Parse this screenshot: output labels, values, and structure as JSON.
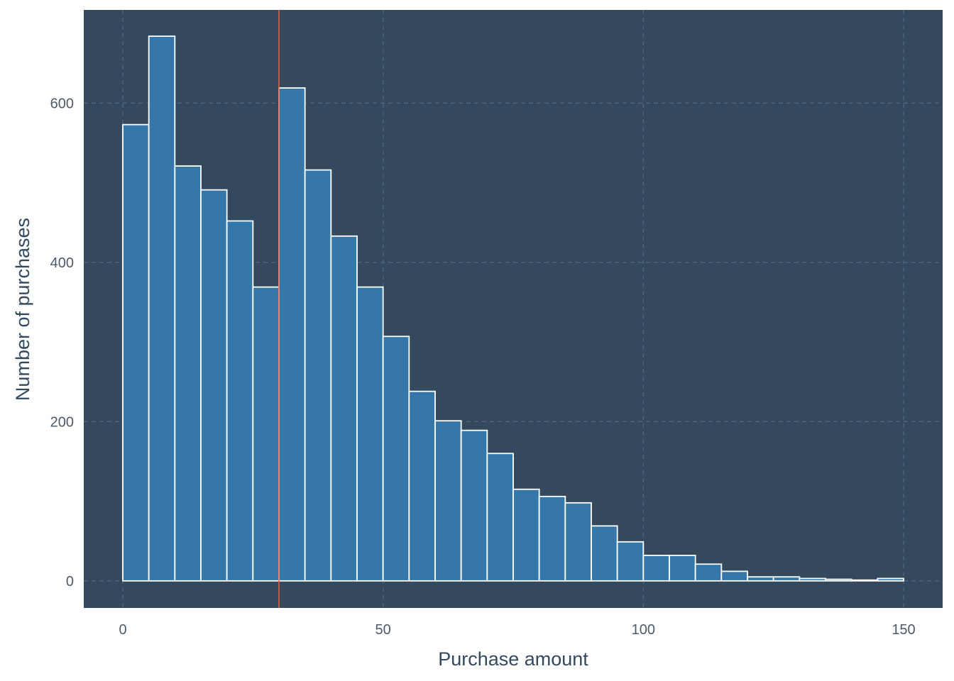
{
  "chart_data": {
    "type": "bar",
    "title": "",
    "xlabel": "Purchase amount",
    "ylabel": "Number of purchases",
    "bin_width": 5,
    "bin_starts": [
      0,
      5,
      10,
      15,
      20,
      25,
      30,
      35,
      40,
      45,
      50,
      55,
      60,
      65,
      70,
      75,
      80,
      85,
      90,
      95,
      100,
      105,
      110,
      115,
      120,
      125,
      130,
      135,
      140,
      145
    ],
    "values": [
      573,
      684,
      521,
      491,
      452,
      369,
      619,
      516,
      433,
      369,
      307,
      238,
      201,
      189,
      160,
      115,
      106,
      98,
      69,
      49,
      32,
      32,
      21,
      12,
      5,
      5,
      3,
      2,
      1,
      3
    ],
    "xlim": [
      -7.5,
      157.5
    ],
    "ylim": [
      -34,
      717
    ],
    "x_ticks": [
      0,
      50,
      100,
      150
    ],
    "y_ticks": [
      0,
      200,
      400,
      600
    ],
    "vline_x": 30,
    "grid": true,
    "legend": "none",
    "colors": {
      "panel_bg": "#34495e",
      "bar_fill": "#3677aa",
      "bar_stroke": "#ffffff",
      "grid": "#4e6582",
      "vline": "#d9654f",
      "tick_text": "#4d5a6a",
      "axis_title": "#34495e"
    }
  }
}
